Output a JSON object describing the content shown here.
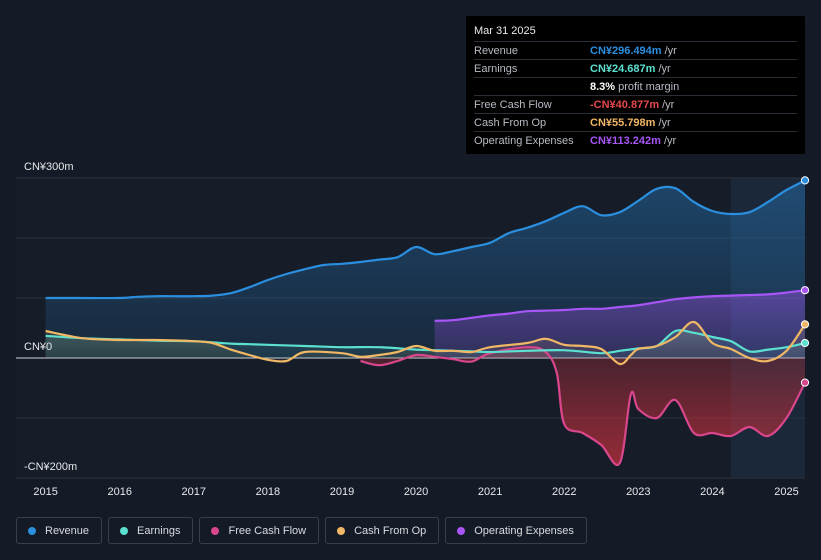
{
  "tooltip": {
    "date": "Mar 31 2025",
    "rows": [
      {
        "label": "Revenue",
        "value": "CN¥296.494m",
        "unit": "/yr",
        "color": "#2b8fe0"
      },
      {
        "label": "Earnings",
        "value": "CN¥24.687m",
        "unit": "/yr",
        "color": "#5ce0cf"
      },
      {
        "label": "",
        "value": "8.3%",
        "unit": "profit margin",
        "color": "#ffffff"
      },
      {
        "label": "Free Cash Flow",
        "value": "-CN¥40.877m",
        "unit": "/yr",
        "color": "#e5484d"
      },
      {
        "label": "Cash From Op",
        "value": "CN¥55.798m",
        "unit": "/yr",
        "color": "#f0b765"
      },
      {
        "label": "Operating Expenses",
        "value": "CN¥113.242m",
        "unit": "/yr",
        "color": "#a855f7"
      }
    ]
  },
  "legend": [
    {
      "label": "Revenue",
      "color": "#2b8fe0"
    },
    {
      "label": "Earnings",
      "color": "#5ce0cf"
    },
    {
      "label": "Free Cash Flow",
      "color": "#d9468c"
    },
    {
      "label": "Cash From Op",
      "color": "#f0b765"
    },
    {
      "label": "Operating Expenses",
      "color": "#a855f7"
    }
  ],
  "chart_data": {
    "type": "area",
    "xlim": [
      2014.6,
      2025.25
    ],
    "ylim": [
      -200,
      300
    ],
    "y_tick_labels": [
      {
        "value": 300,
        "label": "CN¥300m"
      },
      {
        "value": 0,
        "label": "CN¥0"
      },
      {
        "value": -200,
        "label": "-CN¥200m"
      }
    ],
    "x_ticks": [
      2015,
      2016,
      2017,
      2018,
      2019,
      2020,
      2021,
      2022,
      2023,
      2024,
      2025
    ],
    "x_tick_labels": [
      "2015",
      "2016",
      "2017",
      "2018",
      "2019",
      "2020",
      "2021",
      "2022",
      "2023",
      "2024",
      "2025"
    ],
    "highlight_from": 2024.25,
    "series": [
      {
        "name": "Revenue",
        "color": "#2b8fe0",
        "x": [
          2015.0,
          2015.5,
          2016.0,
          2016.25,
          2016.5,
          2016.75,
          2017.0,
          2017.25,
          2017.5,
          2017.75,
          2018.0,
          2018.25,
          2018.5,
          2018.75,
          2019.0,
          2019.25,
          2019.5,
          2019.75,
          2020.0,
          2020.25,
          2020.5,
          2020.75,
          2021.0,
          2021.25,
          2021.5,
          2021.75,
          2022.0,
          2022.25,
          2022.5,
          2022.75,
          2023.0,
          2023.25,
          2023.5,
          2023.75,
          2024.0,
          2024.25,
          2024.5,
          2024.75,
          2025.0,
          2025.25
        ],
        "values": [
          100,
          100,
          100,
          102,
          103,
          103,
          103,
          104,
          108,
          118,
          130,
          140,
          148,
          155,
          157,
          160,
          164,
          168,
          185,
          173,
          178,
          185,
          192,
          208,
          217,
          228,
          242,
          253,
          238,
          243,
          262,
          282,
          283,
          260,
          245,
          240,
          243,
          260,
          280,
          296
        ]
      },
      {
        "name": "Earnings",
        "color": "#5ce0cf",
        "x": [
          2015.0,
          2015.5,
          2016.0,
          2016.5,
          2017.0,
          2017.25,
          2017.5,
          2017.75,
          2018.0,
          2018.5,
          2019.0,
          2019.5,
          2020.0,
          2020.25,
          2020.5,
          2020.75,
          2021.0,
          2021.5,
          2022.0,
          2022.5,
          2022.75,
          2023.0,
          2023.25,
          2023.5,
          2023.75,
          2024.0,
          2024.25,
          2024.5,
          2024.75,
          2025.0,
          2025.25
        ],
        "values": [
          37,
          33,
          31,
          29,
          28,
          26,
          24,
          23,
          22,
          20,
          18,
          18,
          14,
          13,
          12,
          11,
          10,
          12,
          13,
          8,
          12,
          16,
          20,
          45,
          42,
          35,
          28,
          11,
          14,
          18,
          25
        ]
      },
      {
        "name": "Free Cash Flow",
        "color": "#d9468c",
        "x": [
          2019.25,
          2019.5,
          2019.75,
          2020.0,
          2020.25,
          2020.5,
          2020.75,
          2021.0,
          2021.5,
          2021.75,
          2021.9,
          2022.0,
          2022.25,
          2022.5,
          2022.75,
          2022.9,
          2023.0,
          2023.25,
          2023.5,
          2023.75,
          2024.0,
          2024.25,
          2024.5,
          2024.75,
          2025.0,
          2025.25
        ],
        "values": [
          -5,
          -12,
          -5,
          5,
          2,
          -2,
          -6,
          8,
          18,
          10,
          -25,
          -110,
          -125,
          -145,
          -175,
          -60,
          -85,
          -100,
          -70,
          -125,
          -125,
          -130,
          -115,
          -130,
          -100,
          -41
        ]
      },
      {
        "name": "Cash From Op",
        "color": "#f0b765",
        "x": [
          2015.0,
          2015.5,
          2016.0,
          2016.5,
          2017.0,
          2017.25,
          2017.5,
          2017.75,
          2018.0,
          2018.25,
          2018.5,
          2019.0,
          2019.25,
          2019.5,
          2019.75,
          2020.0,
          2020.25,
          2020.5,
          2020.75,
          2021.0,
          2021.5,
          2021.75,
          2022.0,
          2022.25,
          2022.5,
          2022.75,
          2022.9,
          2023.0,
          2023.25,
          2023.5,
          2023.75,
          2024.0,
          2024.25,
          2024.5,
          2024.75,
          2025.0,
          2025.25
        ],
        "values": [
          45,
          33,
          30,
          30,
          28,
          25,
          14,
          5,
          -3,
          -5,
          10,
          8,
          2,
          5,
          10,
          20,
          12,
          12,
          10,
          18,
          25,
          32,
          22,
          20,
          15,
          -10,
          5,
          15,
          20,
          35,
          60,
          25,
          15,
          0,
          -5,
          12,
          56
        ]
      },
      {
        "name": "Operating Expenses",
        "color": "#a855f7",
        "x": [
          2020.25,
          2020.5,
          2020.75,
          2021.0,
          2021.25,
          2021.5,
          2021.75,
          2022.0,
          2022.25,
          2022.5,
          2022.75,
          2023.0,
          2023.25,
          2023.5,
          2023.75,
          2024.0,
          2024.25,
          2024.5,
          2024.75,
          2025.0,
          2025.25
        ],
        "values": [
          62,
          63,
          67,
          71,
          74,
          78,
          79,
          80,
          82,
          82,
          85,
          88,
          93,
          98,
          101,
          103,
          104,
          105,
          106,
          109,
          113
        ]
      }
    ]
  }
}
